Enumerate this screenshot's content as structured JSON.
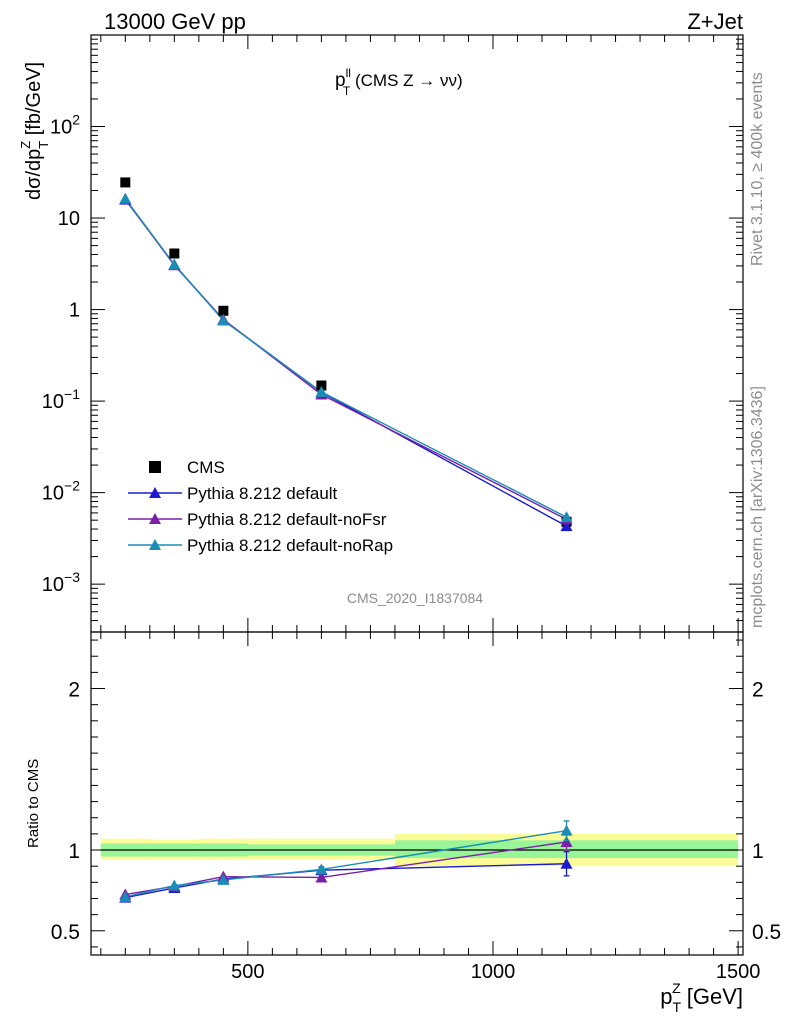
{
  "header": {
    "left": "13000 GeV pp",
    "right": "Z+Jet"
  },
  "side": {
    "rivet": "Rivet 3.1.10, ≥ 400k events",
    "mcplots": "mcplots.cern.ch [arXiv:1306.3436]"
  },
  "analysis_id": "CMS_2020_I1837084",
  "chart_data": [
    {
      "type": "scatter",
      "panel": "main",
      "title_parts": {
        "p": "p",
        "sup": "ll",
        "sub": "T",
        "rest": " (CMS Z → νν)"
      },
      "ylabel_parts": {
        "a": "dσ/dp",
        "sub": "T",
        "sup": "Z",
        "b": " [fb/GeV]"
      },
      "yscale": "log",
      "ylim": [
        0.0003,
        1000
      ],
      "xlim": [
        180,
        1510
      ],
      "y_tick_labels": [
        {
          "mant": "10",
          "exp": "−3",
          "v": 0.001
        },
        {
          "mant": "10",
          "exp": "−2",
          "v": 0.01
        },
        {
          "mant": "10",
          "exp": "−1",
          "v": 0.1
        },
        {
          "mant": "1",
          "exp": "",
          "v": 1
        },
        {
          "mant": "10",
          "exp": "",
          "v": 10
        },
        {
          "mant": "10",
          "exp": "2",
          "v": 100
        }
      ],
      "legend_position": "bottom-left",
      "x": [
        250,
        350,
        450,
        650,
        1150
      ],
      "series": [
        {
          "name": "CMS",
          "color": "#000000",
          "marker": "square",
          "line": false,
          "values": [
            24.5,
            4.1,
            0.97,
            0.148,
            0.0048
          ]
        },
        {
          "name": "Pythia 8.212 default",
          "color": "#1a1ad0",
          "marker": "triangle",
          "line": true,
          "values": [
            15.9,
            3.1,
            0.77,
            0.125,
            0.0043
          ]
        },
        {
          "name": "Pythia 8.212 default-noFsr",
          "color": "#7b1fa8",
          "marker": "triangle",
          "line": true,
          "values": [
            16.1,
            3.05,
            0.78,
            0.118,
            0.0051
          ]
        },
        {
          "name": "Pythia 8.212 default-noRap",
          "color": "#1a8db5",
          "marker": "triangle",
          "line": true,
          "values": [
            16.3,
            3.1,
            0.76,
            0.126,
            0.0054
          ]
        }
      ]
    },
    {
      "type": "line",
      "panel": "ratio",
      "ylabel": "Ratio to CMS",
      "xlabel_parts": {
        "a": "p",
        "sub": "T",
        "sup": "Z",
        "b": " [GeV]"
      },
      "ylim": [
        0.35,
        2.35
      ],
      "xlim": [
        180,
        1510
      ],
      "y_ticks": [
        0.5,
        1,
        2
      ],
      "y_tick_labels": [
        "0.5",
        "1",
        "2"
      ],
      "x_ticks": [
        500,
        1000,
        1500
      ],
      "x_tick_labels": [
        "500",
        "1000",
        "1500"
      ],
      "uncertainty_bands": [
        {
          "x0": 200,
          "x1": 300,
          "inner": [
            0.96,
            1.04
          ],
          "outer": [
            0.94,
            1.07
          ]
        },
        {
          "x0": 300,
          "x1": 400,
          "inner": [
            0.96,
            1.04
          ],
          "outer": [
            0.94,
            1.065
          ]
        },
        {
          "x0": 400,
          "x1": 500,
          "inner": [
            0.96,
            1.04
          ],
          "outer": [
            0.94,
            1.07
          ]
        },
        {
          "x0": 500,
          "x1": 800,
          "inner": [
            0.965,
            1.035
          ],
          "outer": [
            0.94,
            1.07
          ]
        },
        {
          "x0": 800,
          "x1": 1500,
          "inner": [
            0.95,
            1.06
          ],
          "outer": [
            0.9,
            1.1
          ]
        }
      ],
      "band_colors": {
        "inner": "#98f598",
        "outer": "#fbfb98"
      },
      "x": [
        250,
        350,
        450,
        650,
        1150
      ],
      "series": [
        {
          "name": "Pythia 8.212 default",
          "color": "#1a1ad0",
          "values": [
            0.705,
            0.765,
            0.82,
            0.875,
            0.915
          ],
          "err": [
            0,
            0.01,
            0,
            0.02,
            0.075
          ]
        },
        {
          "name": "Pythia 8.212 default-noFsr",
          "color": "#7b1fa8",
          "values": [
            0.725,
            0.775,
            0.835,
            0.83,
            1.05
          ],
          "err": [
            0,
            0,
            0,
            0,
            0.05
          ]
        },
        {
          "name": "Pythia 8.212 default-noRap",
          "color": "#1a8db5",
          "values": [
            0.71,
            0.78,
            0.815,
            0.88,
            1.12
          ],
          "err": [
            0,
            0,
            0,
            0,
            0.06
          ]
        }
      ]
    }
  ]
}
